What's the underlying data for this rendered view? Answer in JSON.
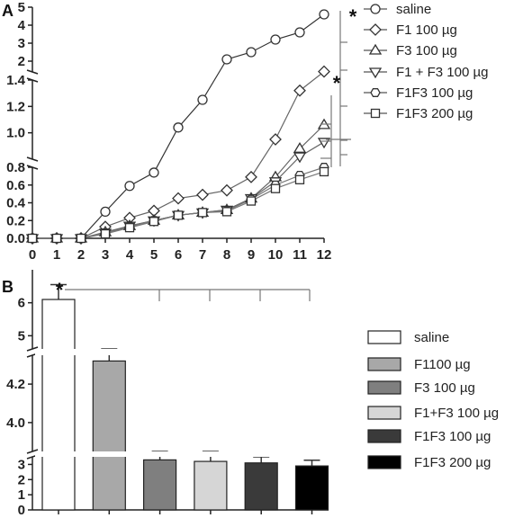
{
  "chart_data": [
    {
      "panel": "A",
      "type": "line",
      "x": [
        0,
        1,
        2,
        3,
        4,
        5,
        6,
        7,
        8,
        9,
        10,
        11,
        12
      ],
      "x_ticks": [
        "0",
        "1",
        "2",
        "3",
        "4",
        "5",
        "6",
        "7",
        "8",
        "9",
        "10",
        "11",
        "12"
      ],
      "y_axis_broken": true,
      "y_segments": [
        {
          "range": [
            0.0,
            0.8
          ],
          "ticks": [
            "0.0",
            "0.2",
            "0.4",
            "0.6",
            "0.8"
          ]
        },
        {
          "range": [
            0.8,
            1.4
          ],
          "ticks": [
            "1.0",
            "1.2",
            "1.4"
          ]
        },
        {
          "range": [
            1.4,
            5.0
          ],
          "ticks": [
            "2",
            "3",
            "4",
            "5"
          ]
        }
      ],
      "significance_marks": [
        "*",
        "*"
      ],
      "series": [
        {
          "name": "saline",
          "marker": "circle",
          "values": [
            0,
            0,
            0,
            0.3,
            0.59,
            0.74,
            1.04,
            1.25,
            2.1,
            2.5,
            3.2,
            3.6,
            4.6
          ]
        },
        {
          "name": "F1 100 µg",
          "marker": "diamond",
          "values": [
            0,
            0,
            0,
            0.13,
            0.23,
            0.31,
            0.45,
            0.49,
            0.54,
            0.69,
            0.95,
            1.32,
            1.42
          ]
        },
        {
          "name": "F3 100 µg",
          "marker": "triangle-up",
          "values": [
            0,
            0,
            0,
            0.07,
            0.14,
            0.2,
            0.26,
            0.29,
            0.32,
            0.45,
            0.69,
            0.88,
            1.06
          ]
        },
        {
          "name": "F1 + F3 100 µg",
          "marker": "triangle-down",
          "values": [
            0,
            0,
            0,
            0.06,
            0.14,
            0.2,
            0.26,
            0.29,
            0.32,
            0.45,
            0.64,
            0.82,
            0.93
          ]
        },
        {
          "name": "F1F3 100 µg",
          "marker": "hexagon",
          "values": [
            0,
            0,
            0,
            0.06,
            0.13,
            0.2,
            0.26,
            0.29,
            0.31,
            0.44,
            0.6,
            0.71,
            0.8
          ]
        },
        {
          "name": "F1F3 200 µg",
          "marker": "square",
          "values": [
            0,
            0,
            0,
            0.05,
            0.12,
            0.19,
            0.26,
            0.29,
            0.3,
            0.42,
            0.56,
            0.66,
            0.75
          ]
        }
      ]
    },
    {
      "panel": "B",
      "type": "bar",
      "y_axis_broken": true,
      "y_segments": [
        {
          "range": [
            0,
            3.5
          ],
          "ticks": [
            "0",
            "1",
            "2",
            "3"
          ]
        },
        {
          "range": [
            3.85,
            4.35
          ],
          "ticks": [
            "4.0",
            "4.2"
          ]
        },
        {
          "range": [
            4.6,
            7.0
          ],
          "ticks": [
            "5",
            "6"
          ]
        }
      ],
      "significance_marks": [
        "*"
      ],
      "series": [
        {
          "name": "saline",
          "value": 6.1,
          "error": 0.45,
          "color": "#ffffff"
        },
        {
          "name": "F1100 µg",
          "value": 4.32,
          "error": 0.1,
          "color": "#a8a8a8"
        },
        {
          "name": "F3 100 µg",
          "value": 3.3,
          "error": 0.42,
          "color": "#7f7f7f"
        },
        {
          "name": "F1+F3 100 µg",
          "value": 3.2,
          "error": 0.42,
          "color": "#d6d6d6"
        },
        {
          "name": "F1F3 100 µg",
          "value": 3.1,
          "error": 0.4,
          "color": "#3a3a3a"
        },
        {
          "name": "F1F3 200 µg",
          "value": 2.9,
          "error": 0.38,
          "color": "#000000"
        }
      ]
    }
  ]
}
